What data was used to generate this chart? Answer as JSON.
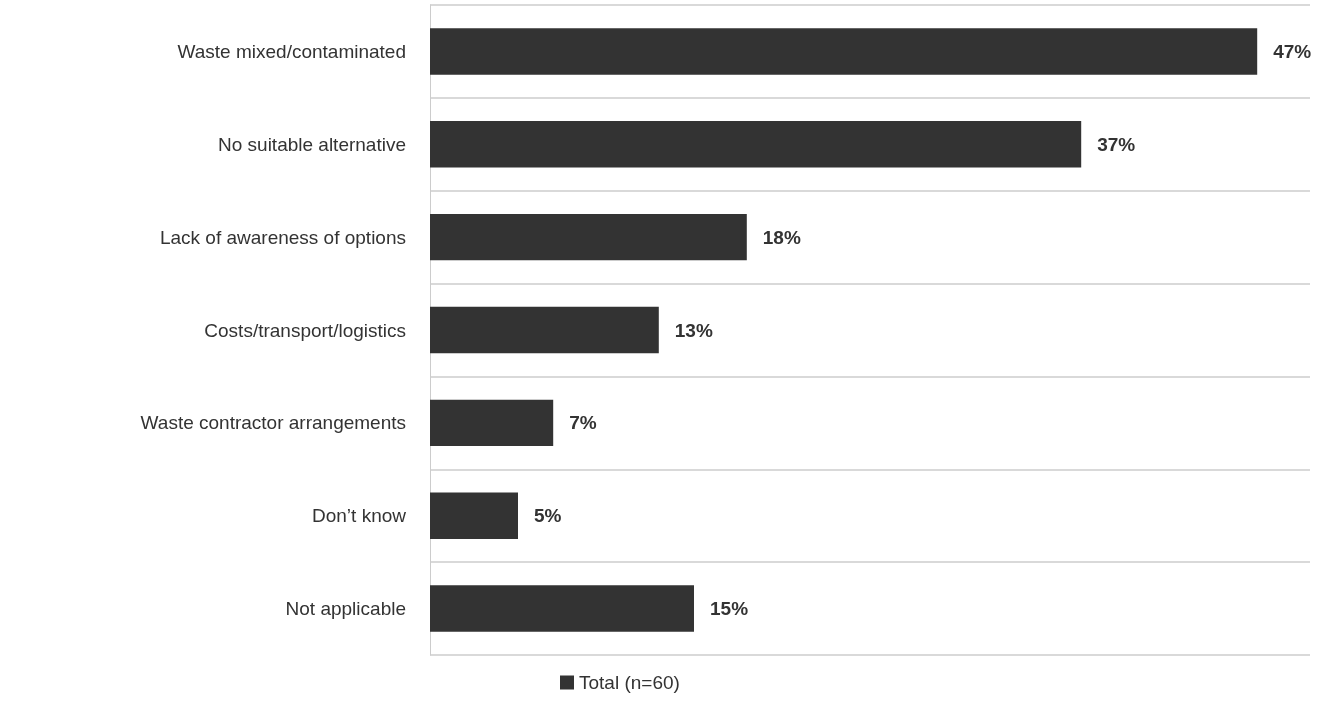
{
  "chart_data": {
    "type": "bar",
    "orientation": "horizontal",
    "categories": [
      "Waste mixed/contaminated",
      "No suitable alternative",
      "Lack of awareness of options",
      "Costs/transport/logistics",
      "Waste contractor arrangements",
      "Don’t know",
      "Not applicable"
    ],
    "series": [
      {
        "name": "Total (n=60)",
        "color": "#333333",
        "values": [
          47,
          37,
          18,
          13,
          7,
          5,
          15
        ],
        "value_labels": [
          "47%",
          "37%",
          "18%",
          "13%",
          "7%",
          "5%",
          "15%"
        ]
      }
    ],
    "grid": "y",
    "legend": "bottom",
    "tick_labels": "y"
  }
}
